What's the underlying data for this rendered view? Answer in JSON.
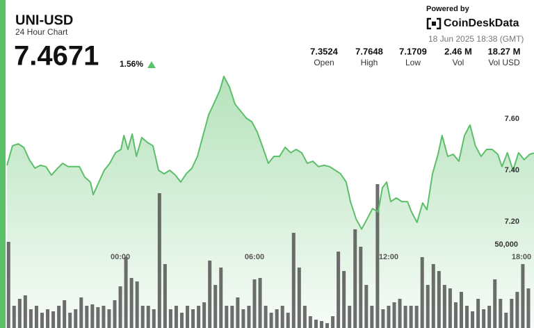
{
  "header": {
    "symbol": "UNI-USD",
    "subtitle": "24 Hour Chart",
    "price": "7.4671",
    "change": "1.56%"
  },
  "provider": {
    "powered_by": "Powered by",
    "brand": "CoinDeskData",
    "timestamp": "18 Jun 2025 18:38 (GMT)"
  },
  "stats": [
    {
      "value": "7.3524",
      "label": "Open"
    },
    {
      "value": "7.7648",
      "label": "High"
    },
    {
      "value": "7.1709",
      "label": "Low"
    },
    {
      "value": "2.46 M",
      "label": "Vol"
    },
    {
      "value": "18.27 M",
      "label": "Vol USD"
    }
  ],
  "chart_data": [
    {
      "type": "area",
      "xlim": [
        -5.07,
        18.5
      ],
      "xticks": [
        {
          "value": 0,
          "label": "00:00"
        },
        {
          "value": 6,
          "label": "06:00"
        },
        {
          "value": 12,
          "label": "12:00"
        },
        {
          "value": 18,
          "label": "18:00"
        }
      ],
      "ylim": [
        6.786,
        7.792
      ],
      "yticks": [
        {
          "value": 7.2,
          "label": "7.20"
        },
        {
          "value": 7.4,
          "label": "7.40"
        },
        {
          "value": 7.6,
          "label": "7.60"
        }
      ],
      "grid": false,
      "x": [
        -5.07,
        -4.82,
        -4.57,
        -4.32,
        -4.07,
        -3.82,
        -3.58,
        -3.33,
        -3.08,
        -2.83,
        -2.58,
        -2.33,
        -2.08,
        -1.83,
        -1.59,
        -1.34,
        -1.21,
        -0.96,
        -0.72,
        -0.47,
        -0.22,
        0.03,
        0.16,
        0.34,
        0.53,
        0.72,
        0.96,
        1.21,
        1.46,
        1.71,
        1.96,
        2.21,
        2.46,
        2.7,
        2.95,
        3.2,
        3.45,
        3.7,
        3.95,
        4.2,
        4.45,
        4.63,
        4.88,
        5.13,
        5.38,
        5.63,
        5.88,
        6.12,
        6.37,
        6.62,
        6.87,
        7.12,
        7.37,
        7.62,
        7.86,
        8.11,
        8.36,
        8.61,
        8.86,
        9.11,
        9.36,
        9.61,
        9.85,
        10.1,
        10.29,
        10.54,
        10.79,
        11.04,
        11.28,
        11.53,
        11.72,
        11.91,
        12.09,
        12.34,
        12.59,
        12.84,
        13.02,
        13.27,
        13.52,
        13.71,
        13.96,
        14.21,
        14.39,
        14.64,
        14.89,
        15.14,
        15.39,
        15.64,
        15.88,
        16.13,
        16.38,
        16.63,
        16.88,
        17.07,
        17.31,
        17.56,
        17.81,
        18.06,
        18.31,
        18.5
      ],
      "series": [
        {
          "color": "#5bbf69",
          "values": [
            7.419,
            7.495,
            7.503,
            7.489,
            7.441,
            7.408,
            7.419,
            7.414,
            7.381,
            7.405,
            7.427,
            7.414,
            7.414,
            7.414,
            7.373,
            7.354,
            7.305,
            7.354,
            7.4,
            7.427,
            7.468,
            7.481,
            7.535,
            7.481,
            7.541,
            7.454,
            7.527,
            7.508,
            7.495,
            7.4,
            7.386,
            7.4,
            7.381,
            7.354,
            7.386,
            7.408,
            7.454,
            7.535,
            7.616,
            7.662,
            7.711,
            7.765,
            7.724,
            7.657,
            7.63,
            7.603,
            7.589,
            7.549,
            7.489,
            7.427,
            7.454,
            7.454,
            7.489,
            7.468,
            7.481,
            7.468,
            7.427,
            7.435,
            7.414,
            7.419,
            7.414,
            7.4,
            7.386,
            7.354,
            7.278,
            7.211,
            7.171,
            7.211,
            7.251,
            7.238,
            7.332,
            7.354,
            7.278,
            7.292,
            7.278,
            7.278,
            7.238,
            7.197,
            7.273,
            7.246,
            7.386,
            7.462,
            7.535,
            7.454,
            7.462,
            7.435,
            7.535,
            7.576,
            7.495,
            7.454,
            7.481,
            7.481,
            7.462,
            7.414,
            7.468,
            7.4,
            7.468,
            7.441,
            7.462,
            7.467
          ]
        }
      ]
    },
    {
      "type": "bar",
      "color": "#4a4a4a",
      "xlim": [
        -5.07,
        18.5
      ],
      "ylim": [
        0,
        155000
      ],
      "yticks": [
        {
          "value": 50000,
          "label": "50,000"
        }
      ],
      "x": [
        -5,
        -4.75,
        -4.5,
        -4.25,
        -4,
        -3.75,
        -3.5,
        -3.25,
        -3,
        -2.75,
        -2.5,
        -2.25,
        -2,
        -1.75,
        -1.5,
        -1.25,
        -1,
        -0.75,
        -0.5,
        -0.25,
        0,
        0.25,
        0.5,
        0.75,
        1,
        1.25,
        1.5,
        1.75,
        2,
        2.25,
        2.5,
        2.75,
        3,
        3.25,
        3.5,
        3.75,
        4,
        4.25,
        4.5,
        4.75,
        5,
        5.25,
        5.5,
        5.75,
        6,
        6.25,
        6.5,
        6.75,
        7,
        7.25,
        7.5,
        7.75,
        8,
        8.25,
        8.5,
        8.75,
        9,
        9.25,
        9.5,
        9.75,
        10,
        10.25,
        10.5,
        10.75,
        11,
        11.25,
        11.5,
        11.75,
        12,
        12.25,
        12.5,
        12.75,
        13,
        13.25,
        13.5,
        13.75,
        14,
        14.25,
        14.5,
        14.75,
        15,
        15.25,
        15.5,
        15.75,
        16,
        16.25,
        16.5,
        16.75,
        17,
        17.25,
        17.5,
        17.75,
        18,
        18.25
      ],
      "values": [
        51670,
        13330,
        17500,
        19580,
        11250,
        13330,
        9170,
        11250,
        10000,
        13330,
        16670,
        9170,
        11250,
        18330,
        13330,
        14170,
        12500,
        13330,
        11250,
        16670,
        25000,
        42500,
        30000,
        27920,
        13330,
        13330,
        11250,
        80840,
        38330,
        11250,
        13330,
        9170,
        13330,
        11250,
        13330,
        15420,
        40420,
        25830,
        36250,
        13330,
        13330,
        18330,
        11250,
        13330,
        29170,
        30000,
        13330,
        9170,
        11250,
        13330,
        9170,
        57080,
        36250,
        13330,
        7080,
        5000,
        4170,
        2920,
        7080,
        45830,
        34170,
        13330,
        59170,
        48750,
        25830,
        13330,
        86250,
        11250,
        13330,
        15420,
        17500,
        13330,
        13330,
        13330,
        42500,
        25830,
        38330,
        34170,
        25830,
        23750,
        15420,
        21670,
        13330,
        10000,
        17500,
        11250,
        13330,
        29170,
        17500,
        9170,
        17500,
        21670,
        38330,
        23750
      ]
    }
  ]
}
